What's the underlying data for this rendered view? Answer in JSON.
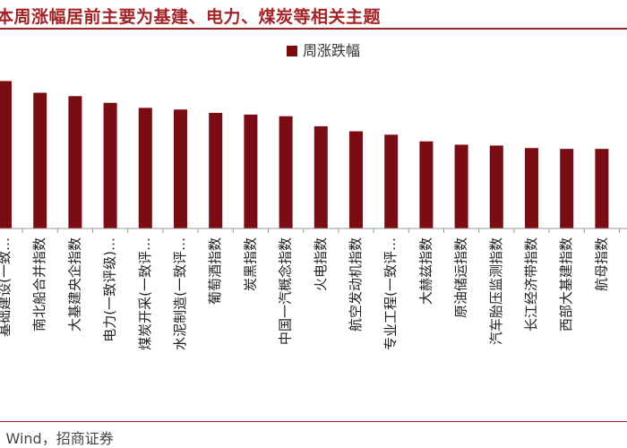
{
  "header": {
    "title": "本周涨幅居前主要为基建、电力、煤炭等相关主题"
  },
  "footer": {
    "source": ": Wind，招商证券"
  },
  "colors": {
    "bar": "#7B0C13",
    "accent": "#A32426"
  },
  "chart_data": {
    "type": "bar",
    "title": "",
    "xlabel": "",
    "ylabel": "",
    "legend": {
      "position": "top-center",
      "entries": [
        "周涨跌幅"
      ]
    },
    "categories": [
      "基础建设(一致…",
      "南北船合并指数",
      "大基建央企指数",
      "电力(一致评级)…",
      "煤炭开采(一致评…",
      "水泥制造(一致评…",
      "葡萄酒指数",
      "炭黑指数",
      "中国一汽概念指数",
      "火电指数",
      "航空发动机指数",
      "专业工程(一致评…",
      "大赫兹指数",
      "原油储运指数",
      "汽车胎压监测指数",
      "长江经济带指数",
      "西部大基建指数",
      "航母指数"
    ],
    "series": [
      {
        "name": "周涨跌幅",
        "values": [
          8.8,
          8.1,
          7.9,
          7.5,
          7.2,
          7.1,
          6.9,
          6.8,
          6.7,
          6.1,
          5.8,
          5.6,
          5.2,
          5.0,
          4.95,
          4.8,
          4.75,
          4.75
        ]
      }
    ],
    "ylim": [
      0,
      10
    ],
    "grid": false
  }
}
